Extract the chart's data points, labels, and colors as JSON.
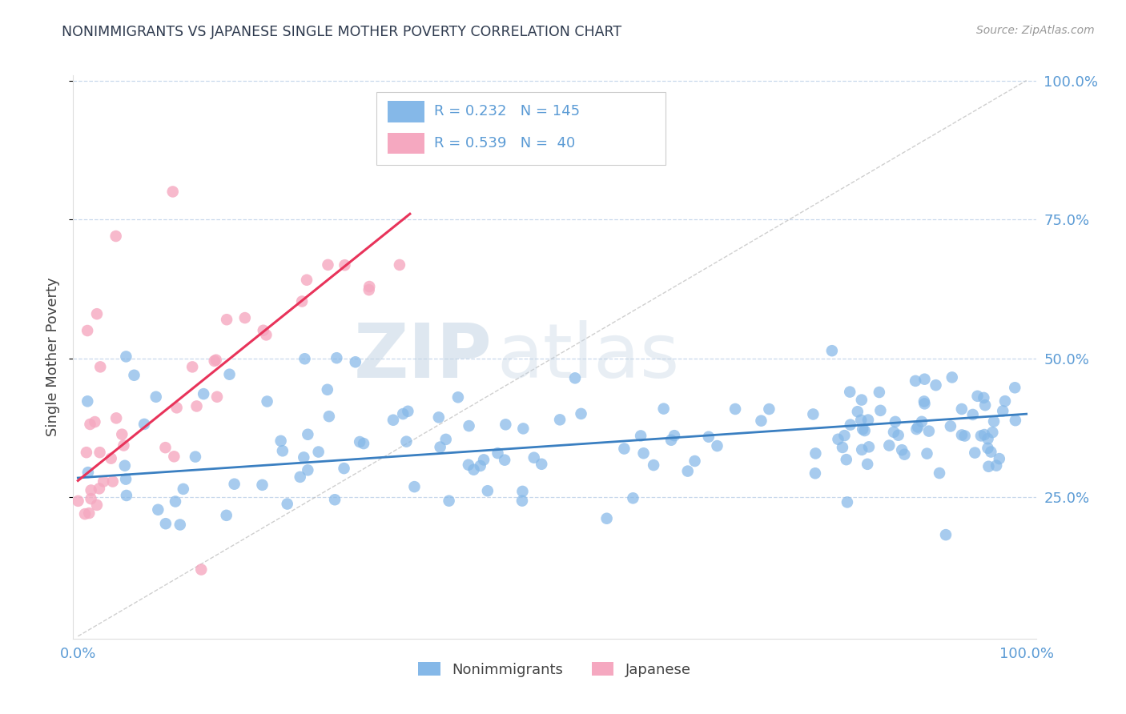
{
  "title": "NONIMMIGRANTS VS JAPANESE SINGLE MOTHER POVERTY CORRELATION CHART",
  "source": "Source: ZipAtlas.com",
  "ylabel": "Single Mother Poverty",
  "watermark_zip": "ZIP",
  "watermark_atlas": "atlas",
  "legend_blue_r": "R = 0.232",
  "legend_blue_n": "N = 145",
  "legend_pink_r": "R = 0.539",
  "legend_pink_n": "N =  40",
  "blue_color": "#85B8E8",
  "pink_color": "#F5A8C0",
  "blue_line_color": "#3A7FC1",
  "pink_line_color": "#E8335A",
  "title_color": "#2E3A4E",
  "axis_label_color": "#444444",
  "tick_color": "#5B9BD5",
  "grid_color": "#C8D8EC",
  "background_color": "#FFFFFF",
  "legend_label_color": "#333333",
  "source_color": "#999999"
}
